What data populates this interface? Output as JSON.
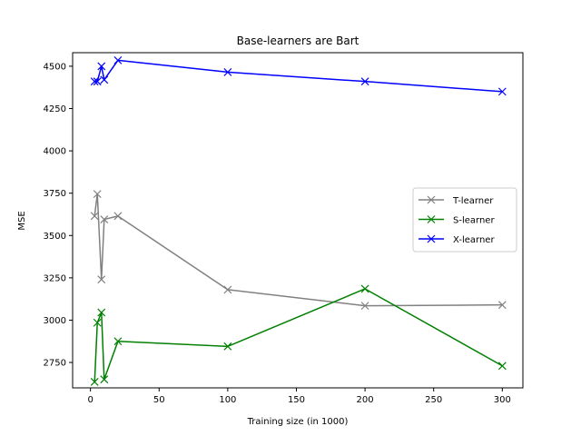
{
  "chart_data": {
    "type": "line",
    "title": "Base-learners are Bart",
    "xlabel": "Training size (in 1000)",
    "ylabel": "MSE",
    "xlim": [
      -13,
      315
    ],
    "ylim": [
      2600,
      4580
    ],
    "xticks": [
      0,
      50,
      100,
      150,
      200,
      250,
      300
    ],
    "yticks": [
      2750,
      3000,
      3250,
      3500,
      3750,
      4000,
      4250,
      4500
    ],
    "x": [
      3,
      5,
      8,
      10,
      20,
      100,
      200,
      300
    ],
    "grid": false,
    "legend_position": "center-right",
    "series": [
      {
        "name": "T-learner",
        "color": "#808080",
        "marker": "x",
        "values": [
          3615,
          3745,
          3240,
          3595,
          3615,
          3180,
          3085,
          3090
        ]
      },
      {
        "name": "S-learner",
        "color": "#008000",
        "marker": "x",
        "values": [
          2635,
          2985,
          3045,
          2650,
          2875,
          2845,
          3185,
          2730
        ]
      },
      {
        "name": "X-learner",
        "color": "#0000ff",
        "marker": "x",
        "values": [
          4410,
          4410,
          4500,
          4420,
          4535,
          4465,
          4410,
          4350
        ]
      }
    ]
  }
}
